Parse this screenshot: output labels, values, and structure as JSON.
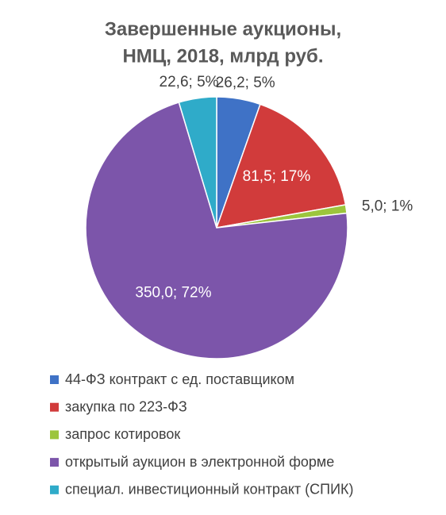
{
  "chart_data": {
    "type": "pie",
    "title": [
      "Завершенные аукционы,",
      "НМЦ, 2018, млрд руб."
    ],
    "categories": [
      "44-ФЗ контракт с ед. поставщиком",
      "закупка по 223-ФЗ",
      "запрос котировок",
      "открытый аукцион в электронной форме",
      "специал. инвестиционный контракт (СПИК)"
    ],
    "values": [
      26.2,
      81.5,
      5.0,
      350.0,
      22.6
    ],
    "value_labels": [
      "26,2; 5%",
      "81,5; 17%",
      "5,0; 1%",
      "350,0; 72%",
      "22,6; 5%"
    ],
    "colors": [
      "#3f72c6",
      "#d13b3b",
      "#9cc53d",
      "#7c55aa",
      "#2fabc9"
    ],
    "legend": "bottom"
  }
}
